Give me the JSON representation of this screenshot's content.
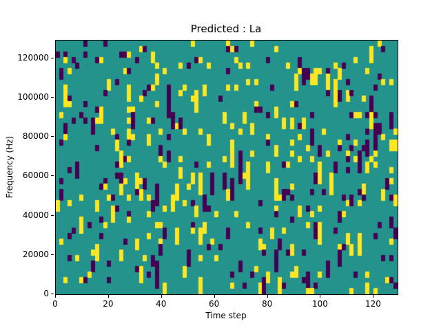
{
  "chart_data": {
    "type": "heatmap",
    "title": "Predicted : La",
    "xlabel": "Time step",
    "ylabel": "Frequency (Hz)",
    "x_range": [
      0,
      129
    ],
    "y_range": [
      0,
      129000
    ],
    "x_ticks": [
      0,
      20,
      40,
      60,
      80,
      100,
      120
    ],
    "y_ticks": [
      0,
      20000,
      40000,
      60000,
      80000,
      100000,
      120000
    ],
    "grid": {
      "cols": 86,
      "rows": 46
    },
    "palette": {
      "background": "#24938c",
      "high": "#fde725",
      "low": "#440154"
    },
    "density": {
      "high": 0.08,
      "low": 0.07
    },
    "random_seed": 42,
    "legend": "none",
    "grid_lines": "off",
    "description": "Sparse scattered yellow (high) and dark purple (low) cells on a teal background, with vertical streak clustering, denser yellow activity around time steps 5-15 and 55-70."
  }
}
